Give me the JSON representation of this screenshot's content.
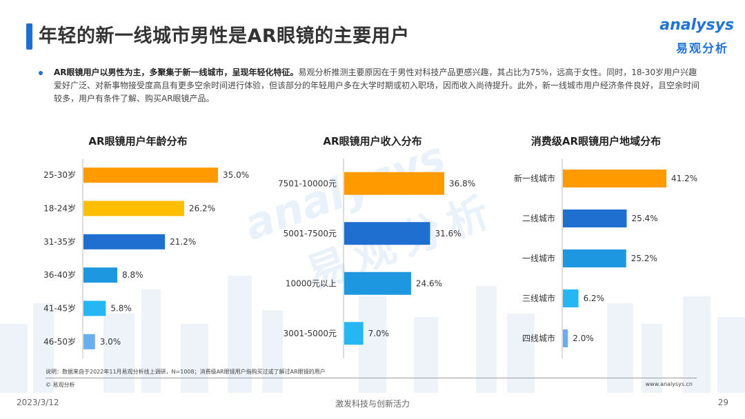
{
  "header": {
    "title": "年轻的新一线城市男性是AR眼镜的主要用户",
    "logo_en": "analysys",
    "logo_cn": "易观分析"
  },
  "summary": {
    "bold": "AR眼镜用户以男性为主，多聚集于新一线城市，呈现年轻化特征。",
    "text": "易观分析推测主要原因在于男性对科技产品更感兴趣，其占比为75%，远高于女性。同时，18-30岁用户兴趣爱好广泛、对新事物接受度高且有更多空余时间进行体验，但该部分的年轻用户多在大学时期或初入职场，因而收入尚待提升。此外，新一线城市用户经济条件良好，且空余时间较多，用户有条件了解、购买AR眼镜产品。"
  },
  "chart_data": [
    {
      "type": "bar",
      "orientation": "horizontal",
      "title": "AR眼镜用户年龄分布",
      "categories": [
        "25-30岁",
        "18-24岁",
        "31-35岁",
        "36-40岁",
        "41-45岁",
        "46-50岁"
      ],
      "values": [
        35.0,
        26.2,
        21.2,
        8.8,
        5.8,
        3.0
      ],
      "labels": [
        "35.0%",
        "26.2%",
        "21.2%",
        "8.8%",
        "5.8%",
        "3.0%"
      ],
      "colors": [
        "#ff9a00",
        "#ffbe00",
        "#1f6fd1",
        "#1d97df",
        "#25b6f3",
        "#6aaef0"
      ],
      "unit": "%",
      "xlim": [
        0,
        35
      ]
    },
    {
      "type": "bar",
      "orientation": "horizontal",
      "title": "AR眼镜用户收入分布",
      "categories": [
        "7501-10000元",
        "5001-7500元",
        "10000元以上",
        "3001-5000元"
      ],
      "values": [
        36.8,
        31.6,
        24.6,
        7.0
      ],
      "labels": [
        "36.8%",
        "31.6%",
        "24.6%",
        "7.0%"
      ],
      "colors": [
        "#ff9a00",
        "#1f6fd1",
        "#1d97df",
        "#25b6f3"
      ],
      "unit": "%",
      "xlim": [
        0,
        36.8
      ]
    },
    {
      "type": "bar",
      "orientation": "horizontal",
      "title": "消费级AR眼镜用户地域分布",
      "categories": [
        "新一线城市",
        "二线城市",
        "一线城市",
        "三线城市",
        "四线城市"
      ],
      "values": [
        41.2,
        25.4,
        25.2,
        6.2,
        2.0
      ],
      "labels": [
        "41.2%",
        "25.4%",
        "25.2%",
        "6.2%",
        "2.0%"
      ],
      "colors": [
        "#ff9a00",
        "#1f6fd1",
        "#1d97df",
        "#25b6f3",
        "#6aaef0"
      ],
      "unit": "%",
      "xlim": [
        0,
        41.2
      ]
    }
  ],
  "footer": {
    "note": "说明：数据来自于2022年11月易观分析线上调研，N=1008；消费级AR眼镜用户指购买过或了解过AR眼镜的用户",
    "copyright": "© 易观分析",
    "site": "www.analysys.cn",
    "date": "2023/3/12",
    "slogan": "激发科技与创新活力",
    "page": "29"
  },
  "watermark": {
    "en": "analysys",
    "cn": "易观分析"
  }
}
